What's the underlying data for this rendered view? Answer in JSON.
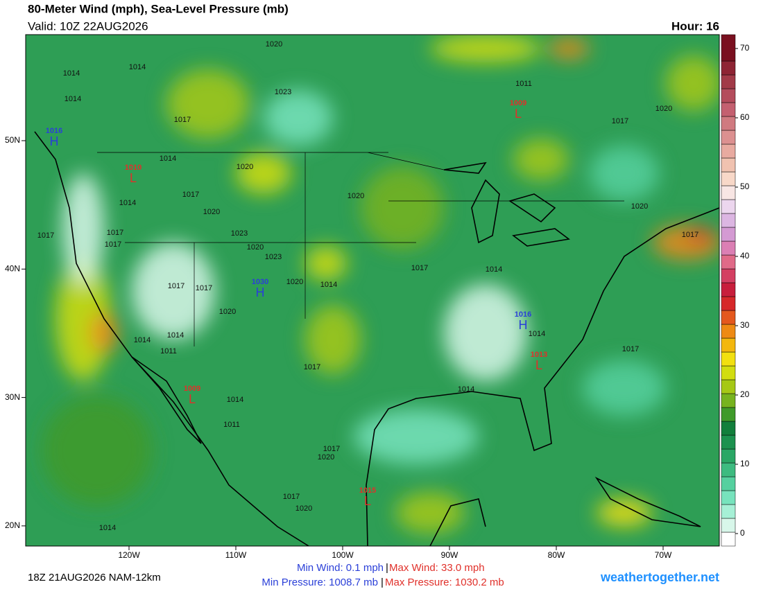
{
  "header": {
    "title": "80-Meter Wind (mph), Sea-Level Pressure (mb)",
    "valid": "Valid: 10Z 22AUG2026",
    "hour": "Hour: 16"
  },
  "axes": {
    "lon": [
      "120W",
      "110W",
      "100W",
      "90W",
      "80W",
      "70W"
    ],
    "lat": [
      "50N",
      "40N",
      "30N",
      "20N"
    ]
  },
  "colorbar": {
    "ticks": [
      0,
      10,
      20,
      30,
      40,
      50,
      60,
      70
    ],
    "colors": [
      "#ffffff",
      "#d8f7ea",
      "#a6f0d6",
      "#77e3bd",
      "#55d09f",
      "#3dbb80",
      "#2aa765",
      "#1c924f",
      "#127f3c",
      "#3f9a2a",
      "#77b31f",
      "#a6c816",
      "#d2dd10",
      "#f2e010",
      "#f3b70e",
      "#ee8a14",
      "#e4581e",
      "#d6282a",
      "#c81e3c",
      "#d43f62",
      "#e06a88",
      "#db7fb4",
      "#d49ad3",
      "#dcb6e2",
      "#ecd6ee",
      "#f8e6e4",
      "#f8d8c8",
      "#f0c2b0",
      "#e8aaa0",
      "#dc9090",
      "#d07a80",
      "#c46070",
      "#b44c5c",
      "#a23a48",
      "#8e2434",
      "#7a1020"
    ]
  },
  "pressure_centers": [
    {
      "symbol": "H",
      "value": "1016"
    },
    {
      "symbol": "L",
      "value": "1010"
    },
    {
      "symbol": "L",
      "value": "1009"
    },
    {
      "symbol": "H",
      "value": "1030"
    },
    {
      "symbol": "H",
      "value": "1016"
    },
    {
      "symbol": "L",
      "value": "1013"
    },
    {
      "symbol": "L",
      "value": "1009"
    },
    {
      "symbol": "L",
      "value": "1015"
    }
  ],
  "isobar_labels": [
    "1020",
    "1014",
    "1014",
    "1014",
    "1023",
    "1011",
    "1020",
    "1017",
    "1017",
    "1014",
    "1020",
    "1017",
    "1014",
    "1020",
    "1020",
    "1020",
    "1017",
    "1017",
    "1023",
    "1017",
    "1020",
    "1023",
    "1017",
    "1017",
    "1014",
    "1020",
    "1014",
    "1017",
    "1017",
    "1020",
    "1014",
    "1014",
    "1011",
    "1014",
    "1017",
    "1017",
    "1014",
    "1011",
    "1014",
    "1017",
    "1020",
    "1017",
    "1020",
    "1014"
  ],
  "footer": {
    "run": "18Z 21AUG2026 NAM-12km",
    "min_wind": "Min Wind:   0.1 mph",
    "separator": "|",
    "max_wind": "Max Wind:  33.0 mph",
    "min_pressure": "Min Pressure: 1008.7 mb",
    "max_pressure": "Max Pressure: 1030.2 mb",
    "site": "weathertogether.net"
  }
}
